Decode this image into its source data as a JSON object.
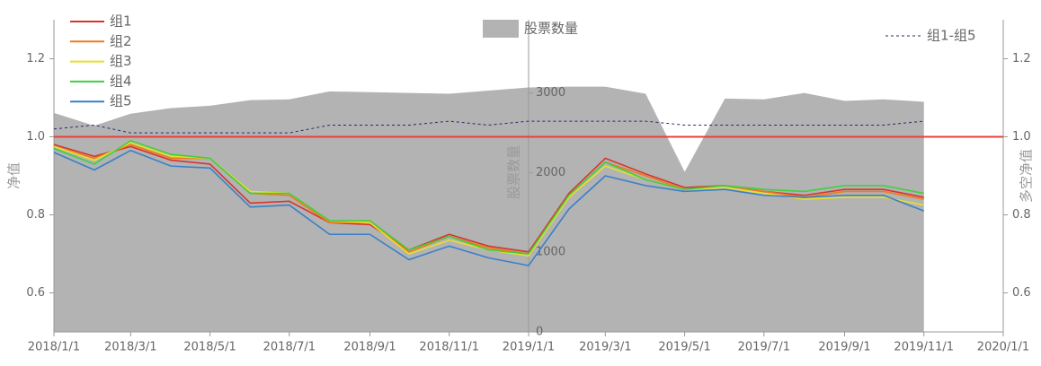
{
  "chart_data": {
    "type": "line",
    "x": [
      "2018/1/1",
      "2018/2/1",
      "2018/3/1",
      "2018/4/1",
      "2018/5/1",
      "2018/6/1",
      "2018/7/1",
      "2018/8/1",
      "2018/9/1",
      "2018/10/1",
      "2018/11/1",
      "2018/12/1",
      "2019/1/1",
      "2019/2/1",
      "2019/3/1",
      "2019/4/1",
      "2019/5/1",
      "2019/6/1",
      "2019/7/1",
      "2019/8/1",
      "2019/9/1",
      "2019/10/1",
      "2019/11/1"
    ],
    "xlim": [
      "2018/1/1",
      "2020/1/1"
    ],
    "xticks": [
      "2018/1/1",
      "2018/3/1",
      "2018/5/1",
      "2018/7/1",
      "2018/9/1",
      "2018/11/1",
      "2019/1/1",
      "2019/3/1",
      "2019/5/1",
      "2019/7/1",
      "2019/9/1",
      "2019/11/1",
      "2020/1/1"
    ],
    "ylabel": "净值",
    "ylim": [
      0.5,
      1.3
    ],
    "yticks": [
      0.6,
      0.8,
      {
        "value": 1,
        "label": "1.0"
      },
      1.2
    ],
    "y2label": "多空净值",
    "y2lim": [
      0.5,
      1.3
    ],
    "y2ticks": [
      0.6,
      0.8,
      {
        "value": 1,
        "label": "1.0"
      },
      1.2
    ],
    "y3label": "股票数量",
    "y3lim": [
      0,
      3920
    ],
    "y3ticks": [
      0,
      1000,
      2000,
      3000
    ],
    "reference_line": {
      "value": 1,
      "color": "#e8403a"
    },
    "series": [
      {
        "name": "股票数量",
        "type": "area",
        "axis": "y3",
        "color": "#b3b3b3",
        "values": [
          2750,
          2590,
          2740,
          2810,
          2840,
          2910,
          2920,
          3020,
          3010,
          3000,
          2990,
          3030,
          3070,
          3080,
          3080,
          2990,
          2010,
          2930,
          2920,
          3000,
          2900,
          2920,
          2890
        ]
      },
      {
        "name": "组1",
        "color": "#d9342b",
        "values": [
          0.98,
          0.95,
          0.975,
          0.94,
          0.93,
          0.83,
          0.835,
          0.78,
          0.775,
          0.71,
          0.75,
          0.72,
          0.705,
          0.855,
          0.945,
          0.905,
          0.87,
          0.875,
          0.86,
          0.85,
          0.865,
          0.865,
          0.845
        ]
      },
      {
        "name": "组2",
        "color": "#f07a1a",
        "values": [
          0.975,
          0.945,
          0.98,
          0.945,
          0.945,
          0.855,
          0.85,
          0.78,
          0.78,
          0.705,
          0.745,
          0.715,
          0.7,
          0.85,
          0.935,
          0.9,
          0.865,
          0.875,
          0.86,
          0.845,
          0.86,
          0.86,
          0.84
        ]
      },
      {
        "name": "组3",
        "color": "#e6e02a",
        "values": [
          0.975,
          0.94,
          0.985,
          0.95,
          0.945,
          0.86,
          0.855,
          0.785,
          0.78,
          0.7,
          0.735,
          0.71,
          0.695,
          0.845,
          0.925,
          0.89,
          0.865,
          0.87,
          0.855,
          0.84,
          0.845,
          0.845,
          0.825
        ]
      },
      {
        "name": "组4",
        "color": "#3fcf3f",
        "values": [
          0.97,
          0.93,
          0.99,
          0.955,
          0.945,
          0.855,
          0.855,
          0.785,
          0.785,
          0.71,
          0.745,
          0.71,
          0.7,
          0.85,
          0.935,
          0.89,
          0.865,
          0.875,
          0.865,
          0.86,
          0.875,
          0.875,
          0.855
        ]
      },
      {
        "name": "组5",
        "color": "#3a7fc8",
        "values": [
          0.96,
          0.915,
          0.965,
          0.925,
          0.92,
          0.82,
          0.825,
          0.75,
          0.75,
          0.685,
          0.72,
          0.69,
          0.67,
          0.815,
          0.9,
          0.875,
          0.86,
          0.865,
          0.85,
          0.845,
          0.85,
          0.85,
          0.81
        ]
      },
      {
        "name": "组1-组5",
        "axis": "y2",
        "dashed": true,
        "color": "#2a2a6a",
        "values": [
          1.02,
          1.03,
          1.01,
          1.01,
          1.01,
          1.01,
          1.01,
          1.03,
          1.03,
          1.03,
          1.04,
          1.03,
          1.04,
          1.04,
          1.04,
          1.04,
          1.03,
          1.03,
          1.03,
          1.03,
          1.03,
          1.03,
          1.04
        ]
      }
    ]
  }
}
